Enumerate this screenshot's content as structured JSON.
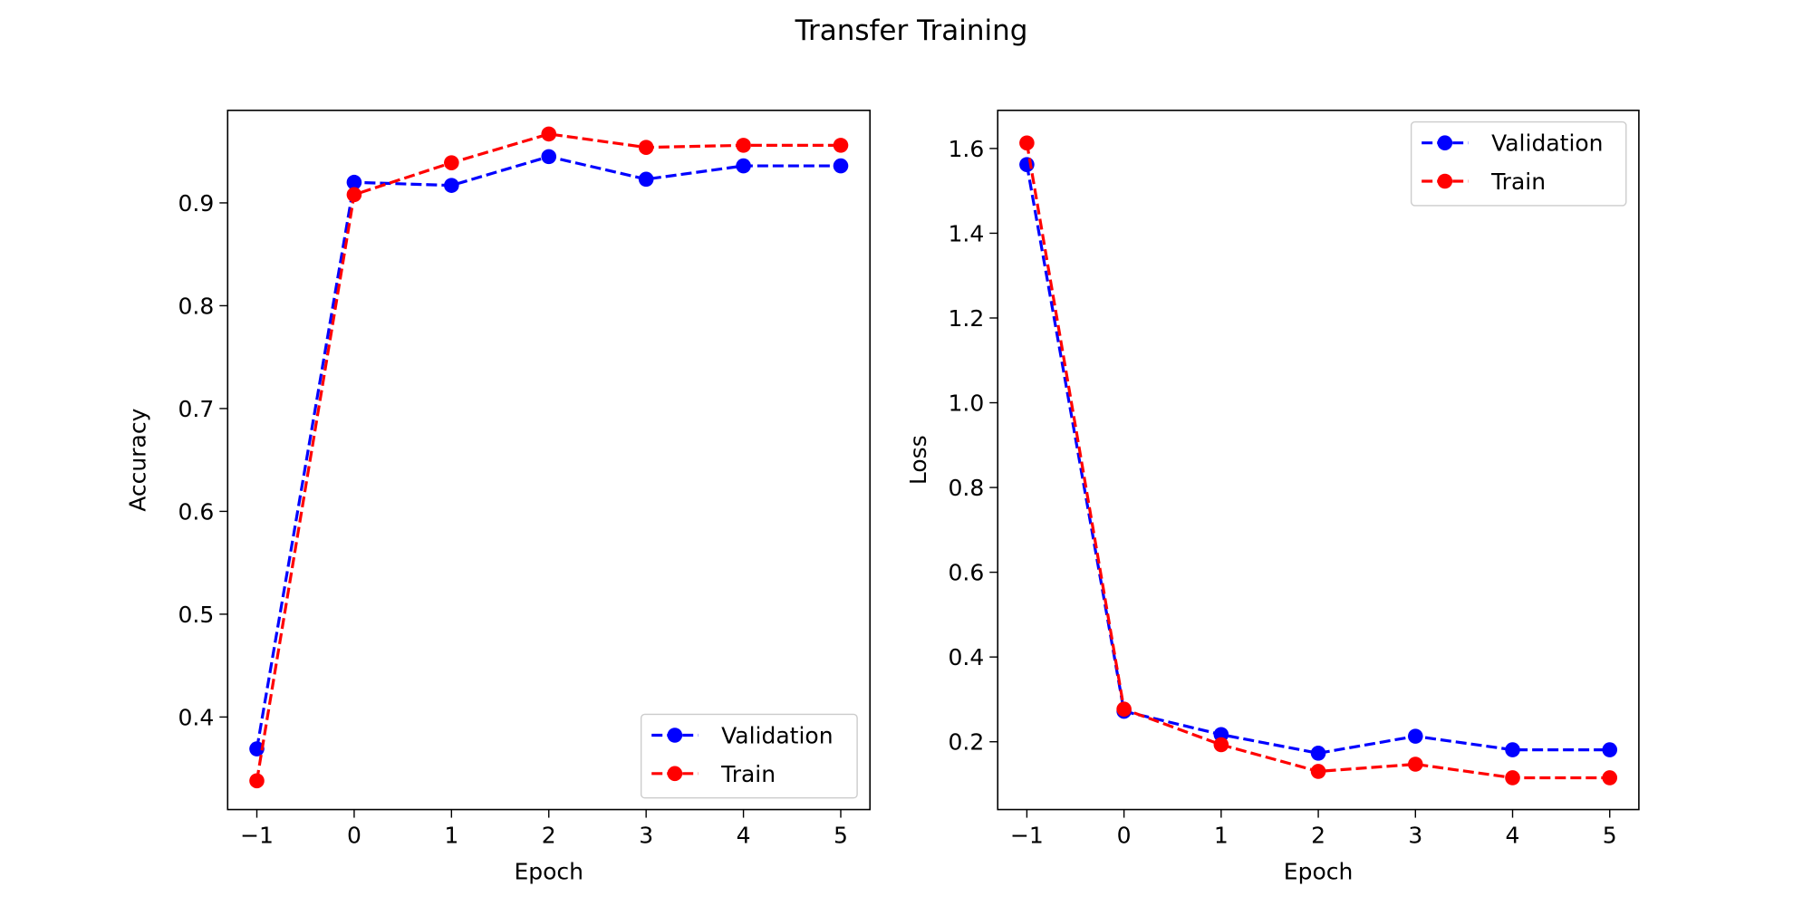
{
  "figure": {
    "title": "Transfer Training"
  },
  "colors": {
    "Validation": "#0000ff",
    "Train": "#ff0000",
    "axes": "#000000",
    "background": "#ffffff",
    "legend_border": "#cccccc"
  },
  "chart_data": [
    {
      "type": "line",
      "title": "",
      "xlabel": "Epoch",
      "ylabel": "Accuracy",
      "x": [
        -1,
        0,
        1,
        2,
        3,
        4,
        5
      ],
      "xlim": [
        -1.3,
        5.3
      ],
      "ylim": [
        0.31,
        0.99
      ],
      "xticks": [
        -1,
        0,
        1,
        2,
        3,
        4,
        5
      ],
      "xtick_labels": [
        "−1",
        "0",
        "1",
        "2",
        "3",
        "4",
        "5"
      ],
      "yticks": [
        0.4,
        0.5,
        0.6,
        0.7,
        0.8,
        0.9
      ],
      "ytick_labels": [
        "0.4",
        "0.5",
        "0.6",
        "0.7",
        "0.8",
        "0.9"
      ],
      "grid": false,
      "legend": "lower-right",
      "series": [
        {
          "name": "Validation",
          "style": "dashed",
          "marker": "circle",
          "values": [
            0.369,
            0.92,
            0.917,
            0.945,
            0.923,
            0.936,
            0.936
          ]
        },
        {
          "name": "Train",
          "style": "dashed",
          "marker": "circle",
          "values": [
            0.338,
            0.908,
            0.939,
            0.967,
            0.954,
            0.956,
            0.956
          ]
        }
      ]
    },
    {
      "type": "line",
      "title": "",
      "xlabel": "Epoch",
      "ylabel": "Loss",
      "x": [
        -1,
        0,
        1,
        2,
        3,
        4,
        5
      ],
      "xlim": [
        -1.3,
        5.3
      ],
      "ylim": [
        0.04,
        1.69
      ],
      "xticks": [
        -1,
        0,
        1,
        2,
        3,
        4,
        5
      ],
      "xtick_labels": [
        "−1",
        "0",
        "1",
        "2",
        "3",
        "4",
        "5"
      ],
      "yticks": [
        0.2,
        0.4,
        0.6,
        0.8,
        1.0,
        1.2,
        1.4,
        1.6
      ],
      "ytick_labels": [
        "0.2",
        "0.4",
        "0.6",
        "0.8",
        "1.0",
        "1.2",
        "1.4",
        "1.6"
      ],
      "grid": false,
      "legend": "upper-right",
      "series": [
        {
          "name": "Validation",
          "style": "dashed",
          "marker": "circle",
          "values": [
            1.562,
            0.272,
            0.217,
            0.173,
            0.213,
            0.181,
            0.181
          ]
        },
        {
          "name": "Train",
          "style": "dashed",
          "marker": "circle",
          "values": [
            1.613,
            0.277,
            0.193,
            0.13,
            0.147,
            0.115,
            0.115
          ]
        }
      ]
    }
  ]
}
